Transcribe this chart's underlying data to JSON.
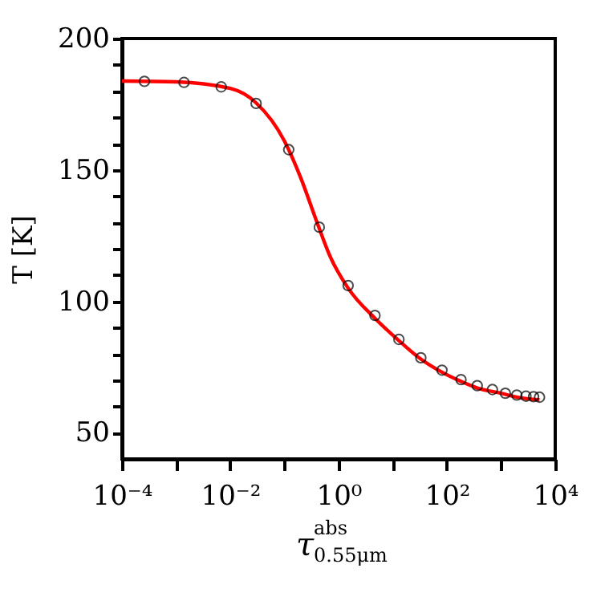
{
  "chart_data": {
    "type": "line",
    "xlabel": "τ$^{abs}$$_{0.55μm}$",
    "ylabel": "T [K]",
    "log": "x",
    "grid": false,
    "xlim": [
      0.0001,
      10000
    ],
    "ylim": [
      40,
      200
    ],
    "xticks": [
      {
        "value": 0.0001,
        "label": "10⁻⁴"
      },
      {
        "value": 0.001,
        "label": null
      },
      {
        "value": 0.01,
        "label": "10⁻²"
      },
      {
        "value": 0.1,
        "label": null
      },
      {
        "value": 1,
        "label": "10⁰"
      },
      {
        "value": 10,
        "label": null
      },
      {
        "value": 100,
        "label": "10²"
      },
      {
        "value": 1000,
        "label": null
      },
      {
        "value": 10000,
        "label": "10⁴"
      }
    ],
    "yticks": [
      50,
      {
        "value": 60,
        "label": null
      },
      {
        "value": 70,
        "label": null
      },
      {
        "value": 80,
        "label": null
      },
      {
        "value": 90,
        "label": null
      },
      100,
      {
        "value": 110,
        "label": null
      },
      {
        "value": 120,
        "label": null
      },
      {
        "value": 130,
        "label": null
      },
      {
        "value": 140,
        "label": null
      },
      150,
      {
        "value": 160,
        "label": null
      },
      {
        "value": 170,
        "label": null
      },
      {
        "value": 180,
        "label": null
      },
      {
        "value": 190,
        "label": null
      },
      200
    ],
    "series": [
      {
        "type": "line",
        "color": "#ff0000",
        "marker": "none",
        "line_style": "solid",
        "x": [
          0.0001,
          0.001,
          0.01,
          0.03,
          0.1,
          0.2,
          0.4,
          0.7,
          1.5,
          4.7,
          13,
          33,
          81,
          182,
          363,
          1000,
          2000,
          5130
        ],
        "values": [
          183.8,
          183.5,
          181,
          175.5,
          161,
          147,
          130,
          117,
          105,
          93.5,
          85,
          78,
          73,
          69.5,
          67,
          65,
          63.5,
          62.5
        ]
      },
      {
        "type": "scatter",
        "color": "#000000",
        "marker": "circle",
        "x": [
          0.00026,
          0.0014,
          0.0068,
          0.03,
          0.12,
          0.44,
          1.5,
          4.7,
          13,
          33,
          81,
          182,
          363,
          692,
          1200,
          1950,
          2880,
          3980,
          5130
        ],
        "values": [
          183.7,
          183.3,
          181.6,
          175.3,
          157.7,
          128.2,
          106,
          94.6,
          85.5,
          78.5,
          73.8,
          70.2,
          67.9,
          66.4,
          65.0,
          64.3,
          63.9,
          63.7,
          63.5
        ]
      }
    ]
  }
}
